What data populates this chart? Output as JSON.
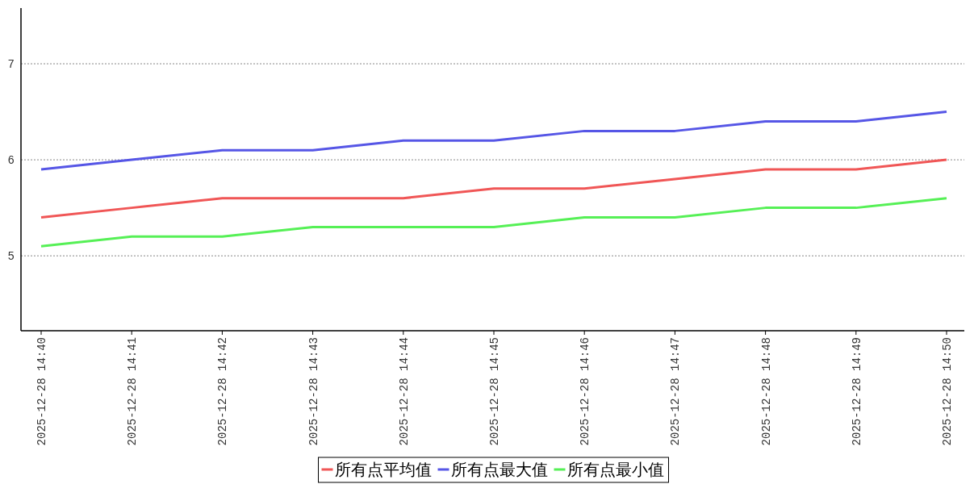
{
  "chart_data": {
    "type": "line",
    "categories": [
      "2025-12-28 14:40",
      "2025-12-28 14:41",
      "2025-12-28 14:42",
      "2025-12-28 14:43",
      "2025-12-28 14:44",
      "2025-12-28 14:45",
      "2025-12-28 14:46",
      "2025-12-28 14:47",
      "2025-12-28 14:48",
      "2025-12-28 14:49",
      "2025-12-28 14:50"
    ],
    "series": [
      {
        "name": "所有点平均值",
        "color": "#f05656",
        "values": [
          5.4,
          5.5,
          5.6,
          5.6,
          5.6,
          5.7,
          5.7,
          5.8,
          5.9,
          5.9,
          6.0
        ]
      },
      {
        "name": "所有点最大值",
        "color": "#5656e6",
        "values": [
          5.9,
          6.0,
          6.1,
          6.1,
          6.2,
          6.2,
          6.3,
          6.3,
          6.4,
          6.4,
          6.5
        ]
      },
      {
        "name": "所有点最小值",
        "color": "#56f056",
        "values": [
          5.1,
          5.2,
          5.2,
          5.3,
          5.3,
          5.3,
          5.4,
          5.4,
          5.5,
          5.5,
          5.6
        ]
      }
    ],
    "ylim": [
      4.22,
      7.58
    ],
    "yticks": [
      5,
      6,
      7
    ],
    "grid": "y",
    "legend": "bottom",
    "marker": "none",
    "line_style": "solid"
  }
}
